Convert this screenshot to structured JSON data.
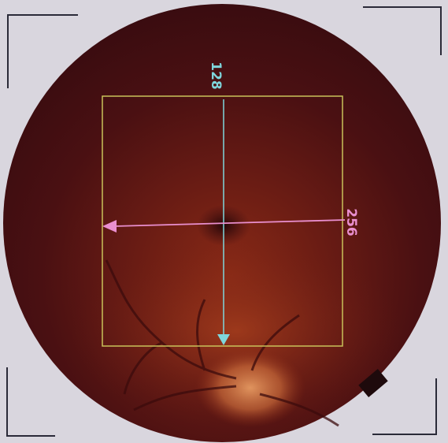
{
  "scan": {
    "vertical_marker": {
      "label": "128",
      "color": "#7fd6dc"
    },
    "horizontal_marker": {
      "label": "256",
      "color": "#e98fcf"
    },
    "roi_box_color": "#c9c25a",
    "fundus_color": "#4a0f10"
  }
}
